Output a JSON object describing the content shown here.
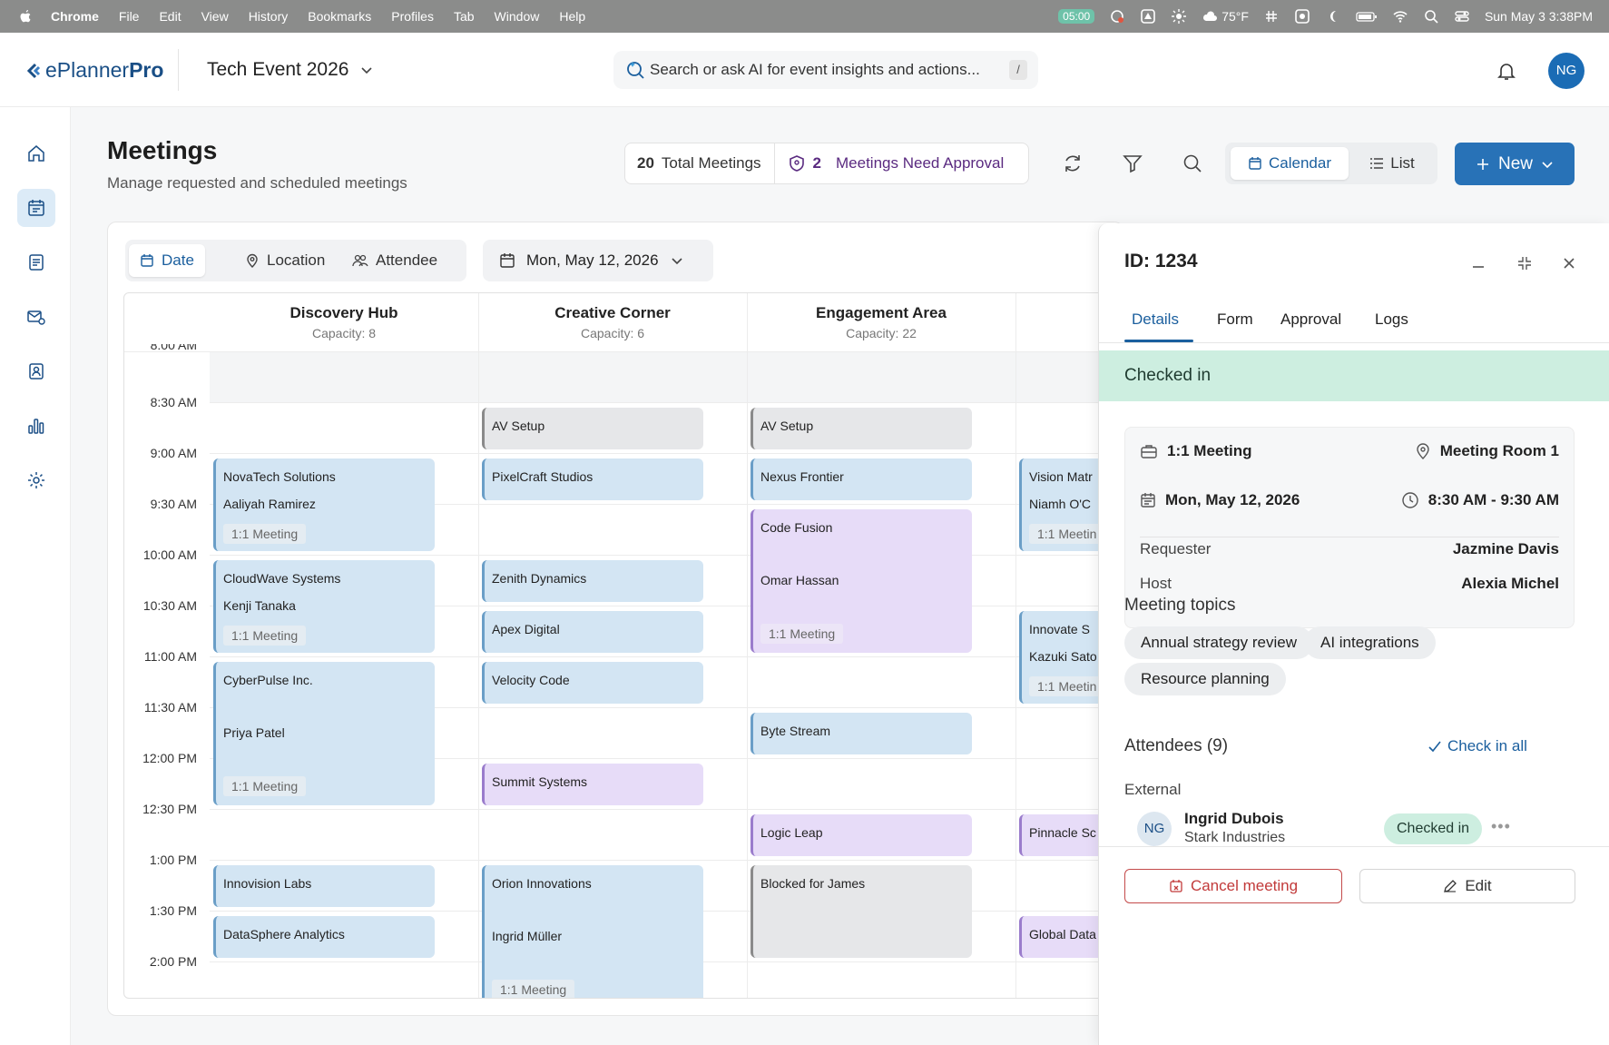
{
  "menubar": {
    "items": [
      "Chrome",
      "File",
      "Edit",
      "View",
      "History",
      "Bookmarks",
      "Profiles",
      "Tab",
      "Window",
      "Help"
    ],
    "timer": "05:00",
    "weather": "75°F",
    "datetime": "Sun May 3  3:38PM"
  },
  "header": {
    "logo_prefix": "ePlanner",
    "logo_suffix": "Pro",
    "event_title": "Tech Event 2026",
    "search_placeholder": "Search or ask AI for event insights and actions...",
    "search_shortcut": "/",
    "user_initials": "NG"
  },
  "page": {
    "title": "Meetings",
    "subtitle": "Manage requested and scheduled meetings",
    "total_count": "20",
    "total_label": "Total Meetings",
    "approval_count": "2",
    "approval_label": "Meetings Need Approval",
    "view_calendar": "Calendar",
    "view_list": "List",
    "new_label": "New"
  },
  "filters": {
    "date": "Date",
    "location": "Location",
    "attendee": "Attendee",
    "selected_date": "Mon, May 12, 2026"
  },
  "calendar": {
    "columns": [
      {
        "name": "Discovery Hub",
        "capacity": "Capacity: 8"
      },
      {
        "name": "Creative Corner",
        "capacity": "Capacity: 6"
      },
      {
        "name": "Engagement Area",
        "capacity": "Capacity: 22"
      }
    ],
    "times": [
      "8:00 AM",
      "8:30 AM",
      "9:00 AM",
      "9:30 AM",
      "10:00 AM",
      "10:30 AM",
      "11:00 AM",
      "11:30 AM",
      "12:00 PM",
      "12:30 PM",
      "1:00 PM",
      "1:30 PM",
      "2:00 PM"
    ],
    "events": {
      "novatech": {
        "title": "NovaTech Solutions",
        "person": "Aaliyah Ramirez",
        "tag": "1:1 Meeting"
      },
      "cloudwave": {
        "title": "CloudWave Systems",
        "person": "Kenji Tanaka",
        "tag": "1:1 Meeting"
      },
      "cyberpulse": {
        "title": "CyberPulse Inc.",
        "person": "Priya Patel",
        "tag": "1:1 Meeting"
      },
      "innovision": {
        "title": "Innovision Labs"
      },
      "datasphere": {
        "title": "DataSphere Analytics"
      },
      "av1": {
        "title": "AV Setup"
      },
      "pixelcraft": {
        "title": "PixelCraft Studios"
      },
      "zenith": {
        "title": "Zenith Dynamics"
      },
      "apex": {
        "title": "Apex Digital"
      },
      "velocity": {
        "title": "Velocity Code"
      },
      "summit": {
        "title": "Summit Systems"
      },
      "orion": {
        "title": "Orion Innovations",
        "person": "Ingrid Müller",
        "tag": "1:1 Meeting"
      },
      "av2": {
        "title": "AV Setup"
      },
      "nexus": {
        "title": "Nexus Frontier"
      },
      "codefusion": {
        "title": "Code Fusion",
        "person": "Omar Hassan",
        "tag": "1:1 Meeting"
      },
      "bytestream": {
        "title": "Byte Stream"
      },
      "logicleap": {
        "title": "Logic Leap"
      },
      "blocked": {
        "title": "Blocked for James"
      },
      "vision": {
        "title": "Vision Matr",
        "person": "Niamh O'C",
        "tag": "1:1 Meetin"
      },
      "innovate": {
        "title": "Innovate S",
        "person": "Kazuki Sato",
        "tag": "1:1 Meetin"
      },
      "pinnacle": {
        "title": "Pinnacle Sc"
      },
      "global": {
        "title": "Global Data"
      }
    }
  },
  "panel": {
    "id": "ID: 1234",
    "tabs": [
      "Details",
      "Form",
      "Approval",
      "Logs"
    ],
    "status": "Checked in",
    "meeting_type": "1:1 Meeting",
    "room": "Meeting Room 1",
    "date": "Mon, May 12, 2026",
    "time": "8:30 AM - 9:30 AM",
    "requester_label": "Requester",
    "requester": "Jazmine Davis",
    "host_label": "Host",
    "host": "Alexia Michel",
    "topics_title": "Meeting topics",
    "topics": [
      "Annual strategy review",
      "AI integrations",
      "Resource planning"
    ],
    "attendees_title": "Attendees (9)",
    "check_in_all": "Check in all",
    "external_label": "External",
    "attendee": {
      "initials": "NG",
      "name": "Ingrid Dubois",
      "org": "Stark Industries",
      "status": "Checked in"
    },
    "cancel_label": "Cancel meeting",
    "edit_label": "Edit"
  }
}
